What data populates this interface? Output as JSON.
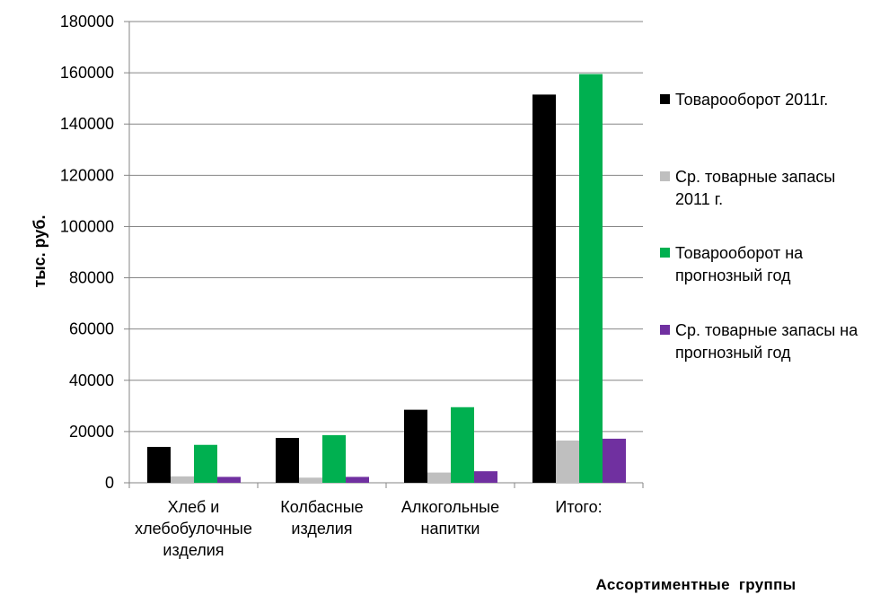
{
  "chart_data": {
    "type": "bar",
    "title": "",
    "xlabel": "Ассортиментные  группы",
    "ylabel": "тыс. руб.",
    "ylim": [
      0,
      180000
    ],
    "ytick_step": 20000,
    "yticks": [
      "0",
      "20000",
      "40000",
      "60000",
      "80000",
      "100000",
      "120000",
      "140000",
      "160000",
      "180000"
    ],
    "grid": true,
    "legend_position": "right",
    "categories": [
      [
        "Хлеб и",
        "хлебобулочные",
        "изделия"
      ],
      [
        "Колбасные",
        "изделия"
      ],
      [
        "Алкогольные",
        "напитки"
      ],
      [
        "Итого:"
      ]
    ],
    "series": [
      {
        "name": [
          "Товарооборот 2011г."
        ],
        "color": "#000000",
        "values": [
          14000,
          17500,
          28500,
          151500
        ]
      },
      {
        "name": [
          "Ср. товарные запасы",
          "2011 г."
        ],
        "color": "#bfbfbf",
        "values": [
          2500,
          2000,
          4000,
          16500
        ]
      },
      {
        "name": [
          "Товарооборот на",
          "прогнозный год"
        ],
        "color": "#00b050",
        "values": [
          14800,
          18600,
          29500,
          159500
        ]
      },
      {
        "name": [
          "Ср. товарные запасы на",
          "прогнозный год"
        ],
        "color": "#7030a0",
        "values": [
          2300,
          2300,
          4500,
          17200
        ]
      }
    ]
  }
}
